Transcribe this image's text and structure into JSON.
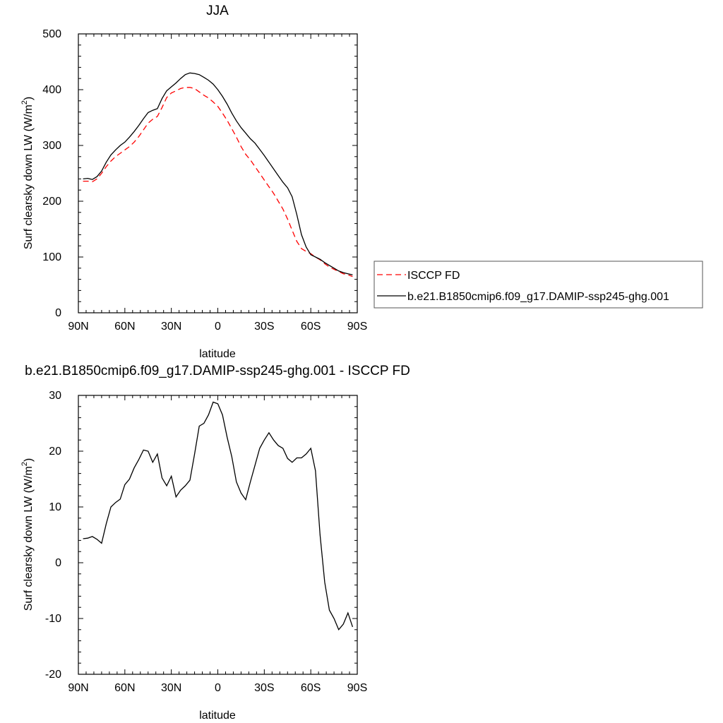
{
  "chart_data": [
    {
      "type": "line",
      "title": "JJA",
      "xlabel": "latitude",
      "ylabel": "Surf clearsky down LW (W/m",
      "ylabel_sup": "2",
      "ylabel_close": ")",
      "xlim": [
        90,
        -90
      ],
      "ylim": [
        0,
        500
      ],
      "xticks": [
        90,
        60,
        30,
        0,
        -30,
        -60,
        -90
      ],
      "xtick_labels": [
        "90N",
        "60N",
        "30N",
        "0",
        "30S",
        "60S",
        "90S"
      ],
      "yticks": [
        0,
        100,
        200,
        300,
        400,
        500
      ],
      "ytick_labels": [
        "0",
        "100",
        "200",
        "300",
        "400",
        "500"
      ],
      "grid": false,
      "legend_position": "right",
      "series": [
        {
          "name": "ISCCP FD",
          "color": "#ff0000",
          "dash": true,
          "x": [
            87,
            84,
            81,
            78,
            75,
            72,
            69,
            66,
            63,
            60,
            57,
            54,
            51,
            48,
            45,
            42,
            39,
            36,
            33,
            30,
            27,
            24,
            21,
            18,
            15,
            12,
            9,
            6,
            3,
            0,
            -3,
            -6,
            -9,
            -12,
            -15,
            -18,
            -21,
            -24,
            -27,
            -30,
            -33,
            -36,
            -39,
            -42,
            -45,
            -48,
            -51,
            -54,
            -57,
            -60,
            -63,
            -66,
            -69,
            -72,
            -75,
            -78,
            -81,
            -84,
            -87
          ],
          "y": [
            236,
            236,
            235,
            240,
            250,
            262,
            272,
            280,
            286,
            292,
            298,
            306,
            316,
            328,
            340,
            347,
            352,
            368,
            386,
            394,
            398,
            402,
            404,
            404,
            402,
            396,
            390,
            385,
            378,
            370,
            358,
            345,
            330,
            315,
            298,
            284,
            274,
            262,
            250,
            238,
            226,
            214,
            200,
            186,
            168,
            148,
            128,
            115,
            110,
            106,
            100,
            95,
            88,
            82,
            78,
            74,
            70,
            68,
            65
          ]
        },
        {
          "name": "b.e21.B1850cmip6.f09_g17.DAMIP-ssp245-ghg.001",
          "color": "#000000",
          "dash": false,
          "x": [
            87,
            84,
            81,
            78,
            75,
            72,
            69,
            66,
            63,
            60,
            57,
            54,
            51,
            48,
            45,
            42,
            39,
            36,
            33,
            30,
            27,
            24,
            21,
            18,
            15,
            12,
            9,
            6,
            3,
            0,
            -3,
            -6,
            -9,
            -12,
            -15,
            -18,
            -21,
            -24,
            -27,
            -30,
            -33,
            -36,
            -39,
            -42,
            -45,
            -48,
            -51,
            -54,
            -57,
            -60,
            -63,
            -66,
            -69,
            -72,
            -75,
            -78,
            -81,
            -84,
            -87
          ],
          "y": [
            240,
            241,
            239,
            244,
            254,
            270,
            283,
            292,
            300,
            306,
            315,
            325,
            336,
            348,
            359,
            363,
            366,
            384,
            398,
            405,
            412,
            420,
            427,
            430,
            429,
            427,
            422,
            417,
            410,
            400,
            388,
            374,
            358,
            344,
            332,
            322,
            312,
            304,
            293,
            282,
            270,
            258,
            246,
            234,
            224,
            208,
            176,
            140,
            118,
            104,
            100,
            96,
            90,
            85,
            80,
            75,
            72,
            70,
            68
          ]
        }
      ]
    },
    {
      "type": "line",
      "title": "b.e21.B1850cmip6.f09_g17.DAMIP-ssp245-ghg.001 - ISCCP FD",
      "xlabel": "latitude",
      "ylabel": "Surf clearsky down LW (W/m",
      "ylabel_sup": "2",
      "ylabel_close": ")",
      "xlim": [
        90,
        -90
      ],
      "ylim": [
        -20,
        30
      ],
      "xticks": [
        90,
        60,
        30,
        0,
        -30,
        -60,
        -90
      ],
      "xtick_labels": [
        "90N",
        "60N",
        "30N",
        "0",
        "30S",
        "60S",
        "90S"
      ],
      "yticks": [
        -20,
        -10,
        0,
        10,
        20,
        30
      ],
      "ytick_labels": [
        "-20",
        "-10",
        "0",
        "10",
        "20",
        "30"
      ],
      "grid": false,
      "series": [
        {
          "color": "#000000",
          "dash": false,
          "x": [
            87,
            84,
            81,
            78,
            75,
            72,
            69,
            66,
            63,
            60,
            57,
            54,
            51,
            48,
            45,
            42,
            39,
            36,
            33,
            30,
            27,
            24,
            21,
            18,
            15,
            12,
            9,
            6,
            3,
            0,
            -3,
            -6,
            -9,
            -12,
            -15,
            -18,
            -21,
            -24,
            -27,
            -30,
            -33,
            -36,
            -39,
            -42,
            -45,
            -48,
            -51,
            -54,
            -57,
            -60,
            -63,
            -66,
            -69,
            -72,
            -75,
            -78,
            -81,
            -84,
            -87
          ],
          "y": [
            4.3,
            4.4,
            4.7,
            4.2,
            3.5,
            7.0,
            10.0,
            10.8,
            11.4,
            14.0,
            15.0,
            17.0,
            18.5,
            20.2,
            20.0,
            18.0,
            19.5,
            15.2,
            13.8,
            15.5,
            11.8,
            13.0,
            13.8,
            14.8,
            19.5,
            24.5,
            25.0,
            26.5,
            28.8,
            28.5,
            26.5,
            22.5,
            19.0,
            14.5,
            12.5,
            11.3,
            14.5,
            17.5,
            20.5,
            22.0,
            23.3,
            22.0,
            21.0,
            20.5,
            18.7,
            18.0,
            18.8,
            18.8,
            19.5,
            20.5,
            16.5,
            5.0,
            -3.5,
            -8.5,
            -10.0,
            -12.0,
            -11.0,
            -9.0,
            -11.5
          ]
        }
      ]
    }
  ]
}
